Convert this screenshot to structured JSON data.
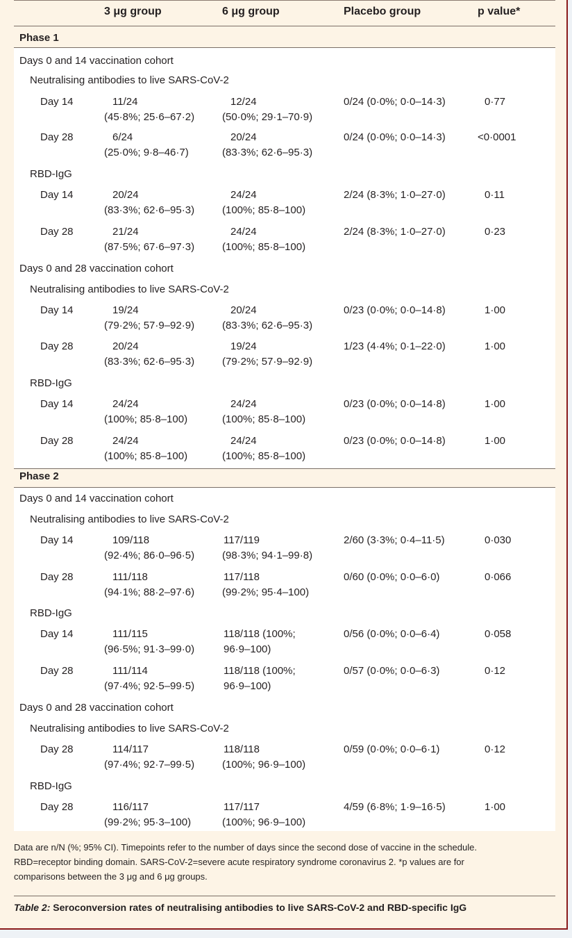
{
  "header": {
    "col_3ug": "3 μg group",
    "col_6ug": "6 μg group",
    "col_placebo": "Placebo group",
    "col_p": "p value*"
  },
  "phase1": {
    "label": "Phase 1",
    "cohort_14": {
      "label": "Days 0 and 14 vaccination cohort",
      "nab_label": "Neutralising antibodies to live SARS-CoV-2",
      "nab": [
        {
          "day": "Day 14",
          "g3a": "11/24",
          "g3b": "(45·8%; 25·6–67·2)",
          "g6a": "12/24",
          "g6b": "(50·0%; 29·1–70·9)",
          "pl": "0/24 (0·0%; 0·0–14·3)",
          "p": "0·77"
        },
        {
          "day": "Day 28",
          "g3a": "6/24",
          "g3b": "(25·0%; 9·8–46·7)",
          "g6a": "20/24",
          "g6b": "(83·3%; 62·6–95·3)",
          "pl": "0/24 (0·0%; 0·0–14·3)",
          "p": "<0·0001"
        }
      ],
      "igg_label": "RBD-IgG",
      "igg": [
        {
          "day": "Day 14",
          "g3a": "20/24",
          "g3b": "(83·3%; 62·6–95·3)",
          "g6a": "24/24",
          "g6b": "(100%; 85·8–100)",
          "pl": "2/24 (8·3%; 1·0–27·0)",
          "p": "0·11"
        },
        {
          "day": "Day 28",
          "g3a": "21/24",
          "g3b": "(87·5%; 67·6–97·3)",
          "g6a": "24/24",
          "g6b": "(100%; 85·8–100)",
          "pl": "2/24 (8·3%; 1·0–27·0)",
          "p": "0·23"
        }
      ]
    },
    "cohort_28": {
      "label": "Days 0 and 28 vaccination cohort",
      "nab_label": "Neutralising antibodies to live SARS-CoV-2",
      "nab": [
        {
          "day": "Day 14",
          "g3a": "19/24",
          "g3b": "(79·2%; 57·9–92·9)",
          "g6a": "20/24",
          "g6b": "(83·3%; 62·6–95·3)",
          "pl": "0/23 (0·0%; 0·0–14·8)",
          "p": "1·00"
        },
        {
          "day": "Day 28",
          "g3a": "20/24",
          "g3b": "(83·3%; 62·6–95·3)",
          "g6a": "19/24",
          "g6b": "(79·2%; 57·9–92·9)",
          "pl": "1/23 (4·4%; 0·1–22·0)",
          "p": "1·00"
        }
      ],
      "igg_label": "RBD-IgG",
      "igg": [
        {
          "day": "Day 14",
          "g3a": "24/24",
          "g3b": "(100%; 85·8–100)",
          "g6a": "24/24",
          "g6b": "(100%; 85·8–100)",
          "pl": "0/23 (0·0%; 0·0–14·8)",
          "p": "1·00"
        },
        {
          "day": "Day 28",
          "g3a": "24/24",
          "g3b": "(100%; 85·8–100)",
          "g6a": "24/24",
          "g6b": "(100%; 85·8–100)",
          "pl": "0/23 (0·0%; 0·0–14·8)",
          "p": "1·00"
        }
      ]
    }
  },
  "phase2": {
    "label": "Phase 2",
    "cohort_14": {
      "label": "Days 0 and 14 vaccination cohort",
      "nab_label": "Neutralising antibodies to live SARS-CoV-2",
      "nab": [
        {
          "day": "Day 14",
          "g3a": "109/118",
          "g3b": "(92·4%; 86·0–96·5)",
          "g6a": "117/119",
          "g6b": "(98·3%; 94·1–99·8)",
          "pl": "2/60 (3·3%; 0·4–11·5)",
          "p": "0·030"
        },
        {
          "day": "Day 28",
          "g3a": "111/118",
          "g3b": "(94·1%; 88·2–97·6)",
          "g6a": "117/118",
          "g6b": "(99·2%; 95·4–100)",
          "pl": "0/60 (0·0%; 0·0–6·0)",
          "p": "0·066"
        }
      ],
      "igg_label": "RBD-IgG",
      "igg": [
        {
          "day": "Day 14",
          "g3a": "111/115",
          "g3b": "(96·5%; 91·3–99·0)",
          "g6a": "118/118 (100%;",
          "g6b": "96·9–100)",
          "pl": "0/56 (0·0%; 0·0–6·4)",
          "p": "0·058"
        },
        {
          "day": "Day 28",
          "g3a": "111/114",
          "g3b": "(97·4%; 92·5–99·5)",
          "g6a": "118/118 (100%;",
          "g6b": "96·9–100)",
          "pl": "0/57 (0·0%; 0·0–6·3)",
          "p": "0·12"
        }
      ]
    },
    "cohort_28": {
      "label": "Days 0 and 28 vaccination cohort",
      "nab_label": "Neutralising antibodies to live SARS-CoV-2",
      "nab": [
        {
          "day": "Day 28",
          "g3a": "114/117",
          "g3b": "(97·4%; 92·7–99·5)",
          "g6a": "118/118",
          "g6b": "(100%; 96·9–100)",
          "pl": "0/59 (0·0%; 0·0–6·1)",
          "p": "0·12"
        }
      ],
      "igg_label": "RBD-IgG",
      "igg": [
        {
          "day": "Day 28",
          "g3a": "116/117",
          "g3b": "(99·2%; 95·3–100)",
          "g6a": "117/117",
          "g6b": "(100%; 96·9–100)",
          "pl": "4/59 (6·8%; 1·9–16·5)",
          "p": "1·00"
        }
      ]
    }
  },
  "footnote": {
    "line1": "Data are n/N (%; 95% CI). Timepoints refer to the number of days since the second dose of vaccine in the schedule.",
    "line2": "RBD=receptor binding domain. SARS-CoV-2=severe acute respiratory syndrome coronavirus 2. *p values are for",
    "line3": "comparisons between the 3 μg and 6 μg groups."
  },
  "caption": {
    "label": "Table 2:",
    "text": " Seroconversion rates of neutralising antibodies to live SARS-CoV-2 and RBD-specific IgG"
  }
}
